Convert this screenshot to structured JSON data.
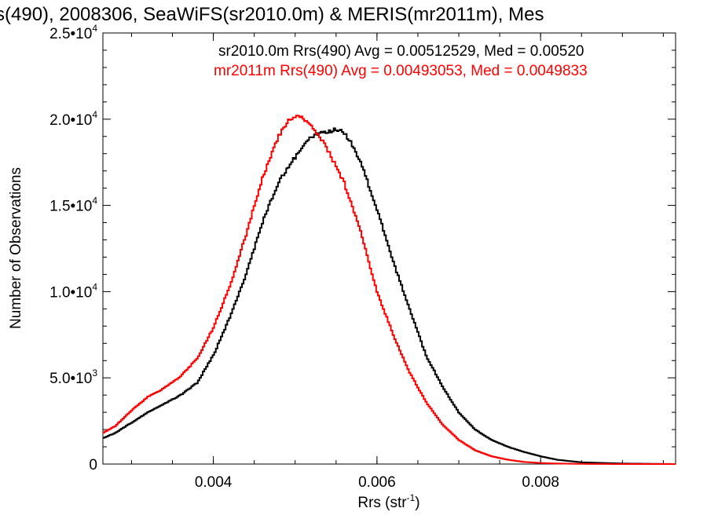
{
  "chart_data": {
    "type": "line",
    "title": "s(490), 2008306, SeaWiFS(sr2010.0m) & MERIS(mr2011m), Mes",
    "xlabel": "Rrs (str",
    "xlabel_sup": "-1",
    "xlabel_close": ")",
    "ylabel": "Number of Observations",
    "xlim": [
      0.00265,
      0.00965
    ],
    "ylim": [
      0,
      25000
    ],
    "x_ticks": [
      {
        "value": 0.004,
        "label": "0.004"
      },
      {
        "value": 0.006,
        "label": "0.006"
      },
      {
        "value": 0.008,
        "label": "0.008"
      }
    ],
    "y_ticks": [
      {
        "value": 0,
        "mant": "0",
        "exp": ""
      },
      {
        "value": 5000,
        "mant": "5.0•10",
        "exp": "3"
      },
      {
        "value": 10000,
        "mant": "1.0•10",
        "exp": "4"
      },
      {
        "value": 15000,
        "mant": "1.5•10",
        "exp": "4"
      },
      {
        "value": 20000,
        "mant": "2.0•10",
        "exp": "4"
      },
      {
        "value": 25000,
        "mant": "2.5•10",
        "exp": "4"
      }
    ],
    "annotations": [
      {
        "text": "sr2010.0m Rrs(490) Avg = 0.00512529, Med = 0.00520",
        "color": "#000000"
      },
      {
        "text": "mr2011m Rrs(490) Avg = 0.00493053, Med = 0.0049833",
        "color": "#ff0000"
      }
    ],
    "series": [
      {
        "color": "#000000",
        "x": [
          0.00265,
          0.0028,
          0.003,
          0.0032,
          0.0034,
          0.0036,
          0.0038,
          0.004,
          0.0042,
          0.0044,
          0.0046,
          0.0048,
          0.005,
          0.0051,
          0.0052,
          0.0053,
          0.0054,
          0.0055,
          0.0056,
          0.0057,
          0.0058,
          0.006,
          0.0062,
          0.0064,
          0.0066,
          0.0068,
          0.007,
          0.0072,
          0.0074,
          0.0076,
          0.0078,
          0.008,
          0.0082,
          0.0085,
          0.009,
          0.00965
        ],
        "y": [
          1500,
          1800,
          2400,
          3000,
          3500,
          4000,
          4700,
          6300,
          8500,
          11000,
          14000,
          16400,
          17800,
          18500,
          19000,
          19200,
          19300,
          19400,
          19200,
          18500,
          17500,
          14800,
          11700,
          9000,
          6300,
          4500,
          3000,
          2000,
          1400,
          1000,
          700,
          450,
          250,
          100,
          30,
          0
        ]
      },
      {
        "color": "#ff0000",
        "x": [
          0.00265,
          0.0028,
          0.003,
          0.0032,
          0.0034,
          0.0036,
          0.0038,
          0.004,
          0.0042,
          0.0044,
          0.0046,
          0.0048,
          0.0049,
          0.005,
          0.0051,
          0.0052,
          0.0053,
          0.0054,
          0.0056,
          0.0058,
          0.006,
          0.0062,
          0.0064,
          0.0066,
          0.0068,
          0.007,
          0.0072,
          0.0074,
          0.0076,
          0.0078,
          0.008,
          0.0082,
          0.0085,
          0.009,
          0.00965
        ],
        "y": [
          1800,
          2200,
          3100,
          3900,
          4400,
          5100,
          6100,
          7900,
          10300,
          13300,
          16600,
          19000,
          19800,
          20200,
          20000,
          19600,
          19000,
          18200,
          16300,
          13500,
          10000,
          7500,
          5300,
          3600,
          2300,
          1400,
          800,
          450,
          250,
          120,
          60,
          30,
          10,
          0,
          0
        ]
      }
    ]
  }
}
